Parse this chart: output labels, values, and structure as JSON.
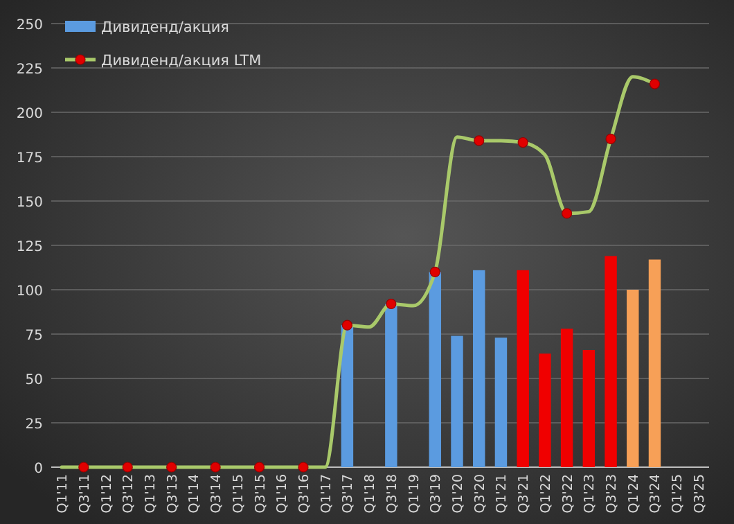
{
  "chart_data": {
    "type": "bar",
    "categories": [
      "Q1'11",
      "Q3'11",
      "Q1'12",
      "Q3'12",
      "Q1'13",
      "Q3'13",
      "Q1'14",
      "Q3'14",
      "Q1'15",
      "Q3'15",
      "Q1'16",
      "Q3'16",
      "Q1'17",
      "Q3'17",
      "Q1'18",
      "Q3'18",
      "Q1'19",
      "Q3'19",
      "Q1'20",
      "Q3'20",
      "Q1'21",
      "Q3'21",
      "Q1'22",
      "Q3'22",
      "Q1'23",
      "Q3'23",
      "Q1'24",
      "Q3'24",
      "Q1'25",
      "Q3'25"
    ],
    "series": [
      {
        "name": "Дивиденд/акция",
        "color": "#5b9be0",
        "colors": [
          null,
          null,
          null,
          null,
          null,
          null,
          null,
          null,
          null,
          null,
          null,
          null,
          null,
          "#5b9be0",
          null,
          "#5b9be0",
          null,
          "#5b9be0",
          "#5b9be0",
          "#5b9be0",
          "#5b9be0",
          "#f00000",
          "#f00000",
          "#f00000",
          "#f00000",
          "#f00000",
          "#f7a057",
          "#f7a057",
          null,
          null
        ],
        "values": [
          null,
          null,
          null,
          null,
          null,
          null,
          null,
          null,
          null,
          null,
          null,
          null,
          null,
          80,
          null,
          92,
          null,
          110,
          74,
          111,
          73,
          111,
          64,
          78,
          66,
          119,
          100,
          117,
          null,
          null
        ]
      },
      {
        "type": "line",
        "name": "Дивиденд/акция LTM",
        "color": "#a9c96a",
        "values": [
          0,
          0,
          0,
          0,
          0,
          0,
          0,
          0,
          0,
          0,
          0,
          0,
          0,
          80,
          79,
          92,
          91,
          110,
          186,
          184,
          184,
          183,
          176,
          143,
          144,
          185,
          220,
          216,
          null,
          null
        ]
      },
      {
        "type": "scatter",
        "color": "#e00000",
        "marker": "circle",
        "values": [
          null,
          0,
          null,
          0,
          null,
          0,
          null,
          0,
          null,
          0,
          null,
          0,
          null,
          80,
          null,
          92,
          null,
          110,
          null,
          184,
          null,
          183,
          null,
          143,
          null,
          185,
          null,
          216,
          null,
          null
        ]
      }
    ],
    "ylim": [
      0,
      250
    ],
    "yticks": [
      0,
      25,
      50,
      75,
      100,
      125,
      150,
      175,
      200,
      225,
      250
    ],
    "grid": "y",
    "legend": "top left"
  }
}
